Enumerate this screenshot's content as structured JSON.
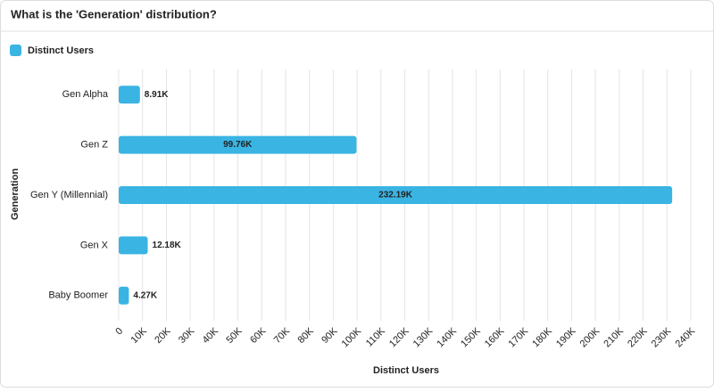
{
  "chart_data": {
    "type": "barh",
    "title": "What is the 'Generation' distribution?",
    "x_label": "Distinct Users",
    "y_label": "Generation",
    "categories": [
      "Gen Alpha",
      "Gen Z",
      "Gen Y (Millennial)",
      "Gen X",
      "Baby Boomer"
    ],
    "series": [
      {
        "name": "Distinct Users",
        "color": "#3ab4e3",
        "values": [
          8910,
          99760,
          232190,
          12180,
          4270
        ],
        "value_labels": [
          "8.91K",
          "99.76K",
          "232.19K",
          "12.18K",
          "4.27K"
        ]
      }
    ],
    "xlim": [
      0,
      240000
    ],
    "xticks": [
      0,
      {
        "value": 10000,
        "label": "10K"
      },
      {
        "value": 20000,
        "label": "20K"
      },
      {
        "value": 30000,
        "label": "30K"
      },
      {
        "value": 40000,
        "label": "40K"
      },
      {
        "value": 50000,
        "label": "50K"
      },
      {
        "value": 60000,
        "label": "60K"
      },
      {
        "value": 70000,
        "label": "70K"
      },
      {
        "value": 80000,
        "label": "80K"
      },
      {
        "value": 90000,
        "label": "90K"
      },
      {
        "value": 100000,
        "label": "100K"
      },
      {
        "value": 110000,
        "label": "110K"
      },
      {
        "value": 120000,
        "label": "120K"
      },
      {
        "value": 130000,
        "label": "130K"
      },
      {
        "value": 140000,
        "label": "140K"
      },
      {
        "value": 150000,
        "label": "150K"
      },
      {
        "value": 160000,
        "label": "160K"
      },
      {
        "value": 170000,
        "label": "170K"
      },
      {
        "value": 180000,
        "label": "180K"
      },
      {
        "value": 190000,
        "label": "190K"
      },
      {
        "value": 200000,
        "label": "200K"
      },
      {
        "value": 210000,
        "label": "210K"
      },
      {
        "value": 220000,
        "label": "220K"
      },
      {
        "value": 230000,
        "label": "230K"
      },
      {
        "value": 240000,
        "label": "240K"
      }
    ],
    "grid": true
  }
}
